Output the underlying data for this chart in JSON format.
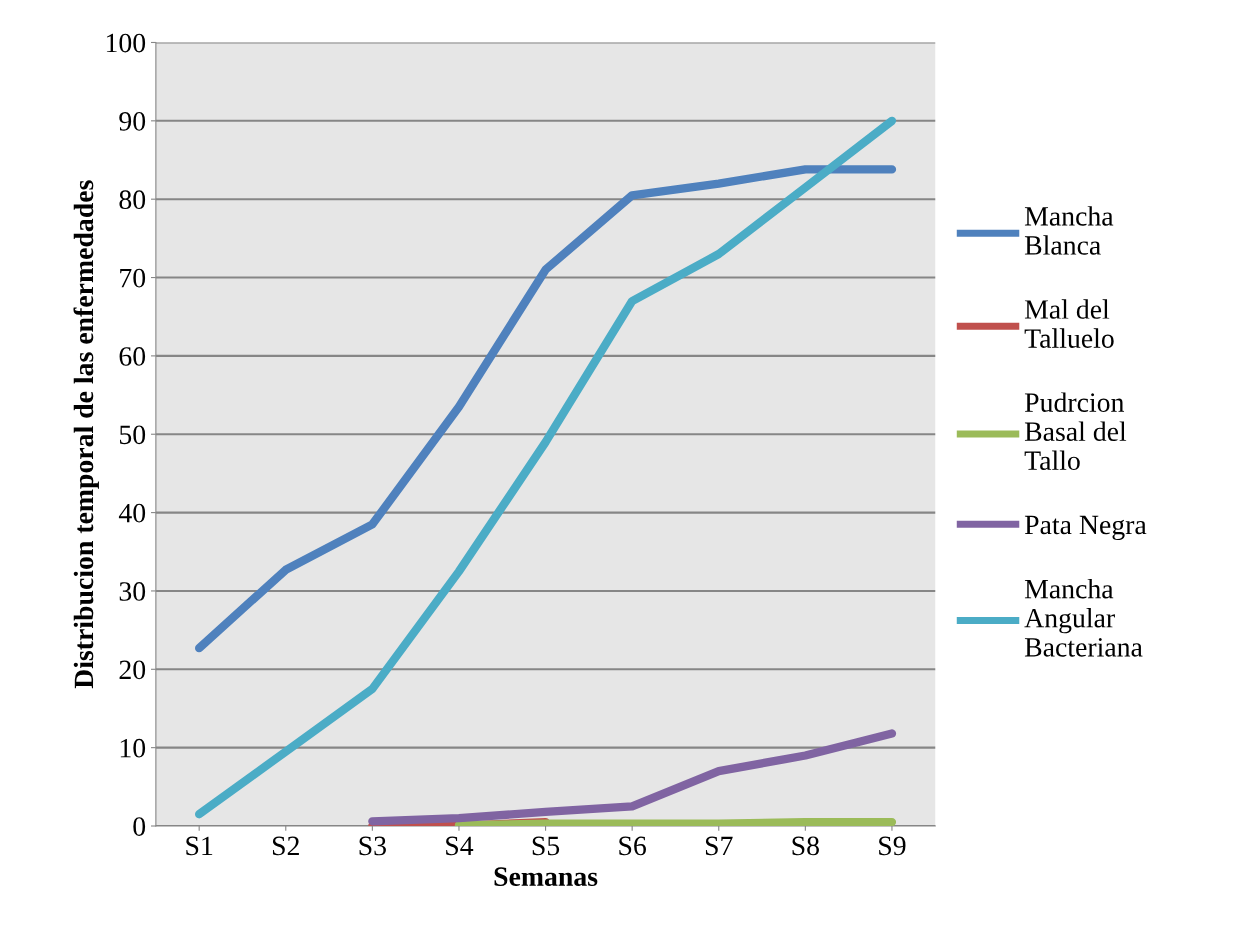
{
  "chart_data": {
    "type": "line",
    "xlabel": "Semanas",
    "ylabel": "Distribucion temporal de las enfermedades",
    "categories": [
      "S1",
      "S2",
      "S3",
      "S4",
      "S5",
      "S6",
      "S7",
      "S8",
      "S9"
    ],
    "series": [
      {
        "name": "Mancha Blanca",
        "color": "#4f81bd",
        "values": [
          22.7,
          32.7,
          38.5,
          53.5,
          71,
          80.5,
          82,
          83.8,
          83.8
        ]
      },
      {
        "name": "Mal del Talluelo",
        "color": "#c0504d",
        "values": [
          null,
          null,
          0,
          0,
          0.5,
          null,
          null,
          null,
          null
        ]
      },
      {
        "name": "Pudrcion Basal del Tallo",
        "color": "#9bbb59",
        "values": [
          null,
          null,
          null,
          0.1,
          0.3,
          0.3,
          0.3,
          0.5,
          0.5
        ]
      },
      {
        "name": "Pata Negra",
        "color": "#8064a2",
        "values": [
          null,
          null,
          0.6,
          1,
          1.8,
          2.5,
          7,
          9,
          11.8
        ]
      },
      {
        "name": "Mancha Angular Bacteriana",
        "color": "#4bacc6",
        "values": [
          1.5,
          9.5,
          17.5,
          32.5,
          49,
          67,
          73,
          81.5,
          90
        ]
      }
    ],
    "ylim": [
      0,
      100
    ],
    "yticks": [
      0,
      10,
      20,
      30,
      40,
      50,
      60,
      70,
      80,
      90,
      100
    ],
    "grid": "y",
    "legend": "right",
    "marker": "none",
    "line_style": "solid"
  }
}
